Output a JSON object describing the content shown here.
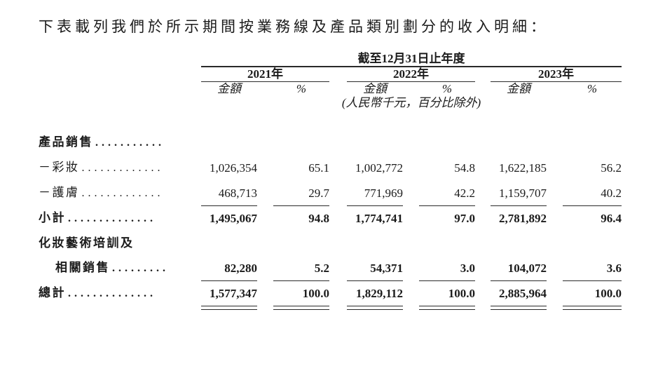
{
  "page": {
    "intro_text": "下表載列我們於所示期間按業務線及產品類別劃分的收入明細："
  },
  "table": {
    "period_header": "截至12月31日止年度",
    "years": [
      "2021年",
      "2022年",
      "2023年"
    ],
    "amount_header": "金額",
    "percent_header": "%",
    "unit_note": "(人民幣千元，百分比除外)",
    "rows": [
      {
        "label": "產品銷售",
        "dots": "...........",
        "bold": true,
        "indent": 0,
        "rule": "none",
        "values": [
          "",
          "",
          "",
          "",
          "",
          ""
        ]
      },
      {
        "label": "－彩妝",
        "dots": ".............",
        "bold": false,
        "indent": 0,
        "rule": "none",
        "values": [
          "1,026,354",
          "65.1",
          "1,002,772",
          "54.8",
          "1,622,185",
          "56.2"
        ]
      },
      {
        "label": "－護膚",
        "dots": ".............",
        "bold": false,
        "indent": 0,
        "rule": "single",
        "values": [
          "468,713",
          "29.7",
          "771,969",
          "42.2",
          "1,159,707",
          "40.2"
        ]
      },
      {
        "label": "小計",
        "dots": "..............",
        "bold": true,
        "indent": 0,
        "rule": "none",
        "values": [
          "1,495,067",
          "94.8",
          "1,774,741",
          "97.0",
          "2,781,892",
          "96.4"
        ]
      },
      {
        "label": "化妝藝術培訓及",
        "dots": "",
        "bold": true,
        "indent": 0,
        "rule": "none",
        "values": [
          "",
          "",
          "",
          "",
          "",
          ""
        ]
      },
      {
        "label": "相關銷售",
        "dots": ".........",
        "bold": true,
        "indent": 1,
        "rule": "single",
        "values": [
          "82,280",
          "5.2",
          "54,371",
          "3.0",
          "104,072",
          "3.6"
        ]
      },
      {
        "label": "總計",
        "dots": "..............",
        "bold": true,
        "indent": 0,
        "rule": "double",
        "values": [
          "1,577,347",
          "100.0",
          "1,829,112",
          "100.0",
          "2,885,964",
          "100.0"
        ]
      }
    ]
  }
}
